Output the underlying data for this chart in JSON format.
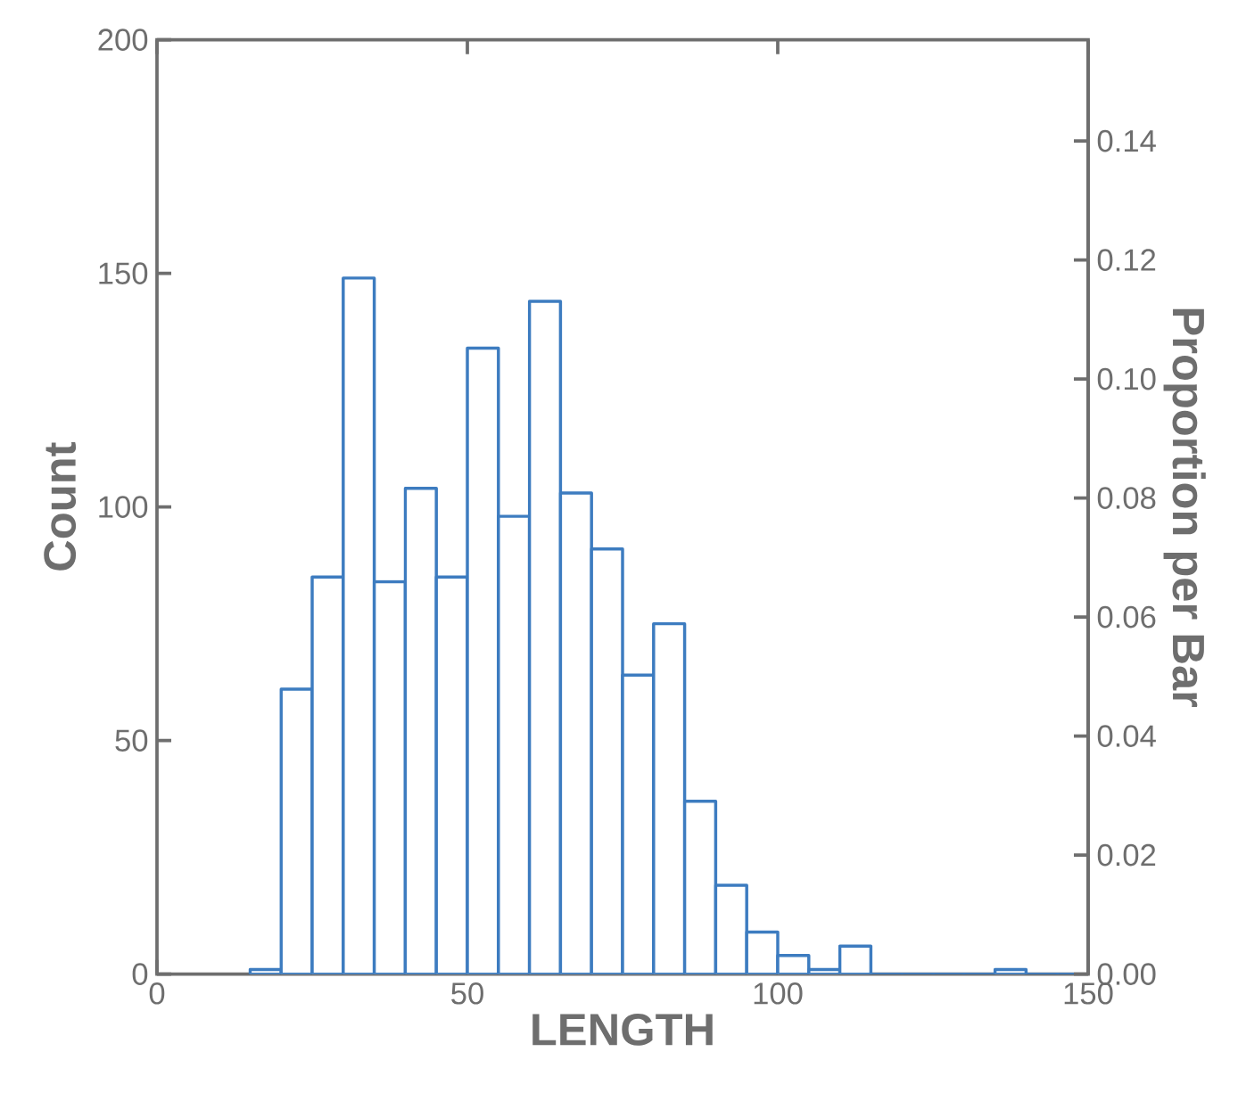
{
  "chart_data": {
    "type": "histogram",
    "xlabel": "LENGTH",
    "ylabel": "Count",
    "y2label": "Proportion per Bar",
    "bins": [
      15,
      20,
      25,
      30,
      35,
      40,
      45,
      50,
      55,
      60,
      65,
      70,
      75,
      80,
      85,
      90,
      95,
      100,
      105,
      110,
      115,
      120,
      125,
      130,
      135,
      140,
      145,
      150
    ],
    "values": [
      1,
      61,
      85,
      149,
      84,
      104,
      85,
      134,
      98,
      144,
      103,
      91,
      64,
      75,
      37,
      19,
      9,
      4,
      1,
      6,
      0,
      0,
      0,
      0,
      1,
      0,
      0
    ],
    "color": "#3d7cc0",
    "xlim": [
      0,
      150
    ],
    "xticks": [
      0,
      50,
      100,
      150
    ],
    "ylim": [
      0,
      200
    ],
    "yticks": [
      0,
      50,
      100,
      150,
      200
    ],
    "y2lim": [
      0,
      0.157
    ],
    "y2ticks": [
      {
        "value": 0,
        "label": "0.00"
      },
      {
        "value": 0.02,
        "label": "0.02"
      },
      {
        "value": 0.04,
        "label": "0.04"
      },
      {
        "value": 0.06,
        "label": "0.06"
      },
      {
        "value": 0.08,
        "label": "0.08"
      },
      {
        "value": 0.1,
        "label": "0.10"
      },
      {
        "value": 0.12,
        "label": "0.12"
      },
      {
        "value": 0.14,
        "label": "0.14"
      }
    ],
    "grid": false
  }
}
